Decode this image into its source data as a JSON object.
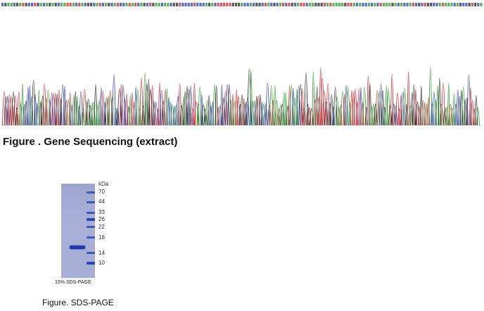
{
  "sequence_figure": {
    "caption": "Figure . Gene Sequencing (extract)",
    "trace_colors": {
      "A": "#2a9a2a",
      "C": "#2a3aa8",
      "G": "#222222",
      "T": "#c8232a"
    }
  },
  "gel_figure": {
    "unit_label": "kDa",
    "marker_labels": [
      "70",
      "44",
      "33",
      "26",
      "22",
      "18",
      "14",
      "10"
    ],
    "gel_caption": "15% SDS-PAGE",
    "title": "Figure. SDS-PAGE",
    "lane_color": "#a7aed6",
    "band_color": "#1d3aa6"
  }
}
